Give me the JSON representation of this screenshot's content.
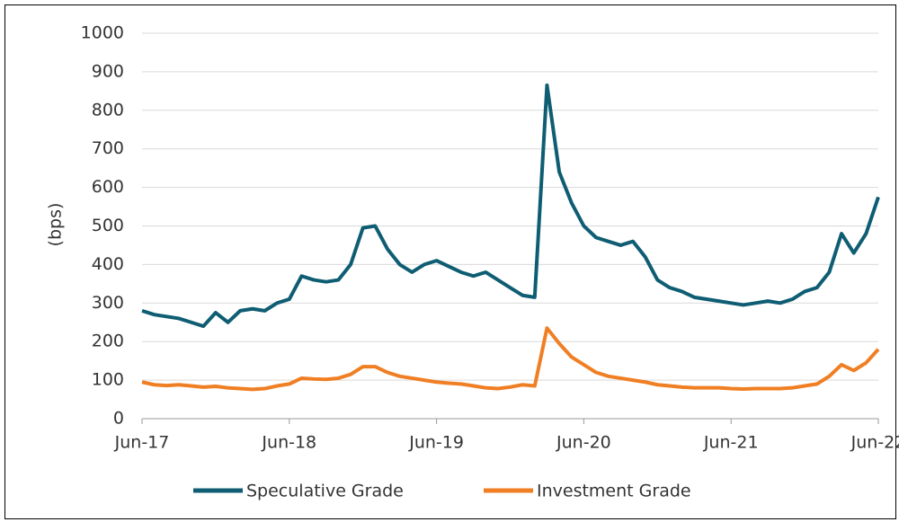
{
  "chart_data": {
    "type": "line",
    "y_label": "(bps)",
    "x": [
      "2017-06",
      "2017-07",
      "2017-08",
      "2017-09",
      "2017-10",
      "2017-11",
      "2017-12",
      "2018-01",
      "2018-02",
      "2018-03",
      "2018-04",
      "2018-05",
      "2018-06",
      "2018-07",
      "2018-08",
      "2018-09",
      "2018-10",
      "2018-11",
      "2018-12",
      "2019-01",
      "2019-02",
      "2019-03",
      "2019-04",
      "2019-05",
      "2019-06",
      "2019-07",
      "2019-08",
      "2019-09",
      "2019-10",
      "2019-11",
      "2019-12",
      "2020-01",
      "2020-02",
      "2020-03",
      "2020-04",
      "2020-05",
      "2020-06",
      "2020-07",
      "2020-08",
      "2020-09",
      "2020-10",
      "2020-11",
      "2020-12",
      "2021-01",
      "2021-02",
      "2021-03",
      "2021-04",
      "2021-05",
      "2021-06",
      "2021-07",
      "2021-08",
      "2021-09",
      "2021-10",
      "2021-11",
      "2021-12",
      "2022-01",
      "2022-02",
      "2022-03",
      "2022-04",
      "2022-05",
      "2022-06"
    ],
    "series": [
      {
        "name": "Speculative Grade",
        "color": "#0e5d73",
        "values": [
          280,
          270,
          265,
          260,
          250,
          240,
          275,
          250,
          280,
          285,
          280,
          300,
          310,
          370,
          360,
          355,
          360,
          400,
          495,
          500,
          440,
          400,
          380,
          400,
          410,
          395,
          380,
          370,
          380,
          360,
          340,
          320,
          315,
          865,
          640,
          560,
          500,
          470,
          460,
          450,
          460,
          420,
          360,
          340,
          330,
          315,
          310,
          305,
          300,
          295,
          300,
          305,
          300,
          310,
          330,
          340,
          380,
          480,
          430,
          480,
          575
        ]
      },
      {
        "name": "Investment Grade",
        "color": "#f07f24",
        "values": [
          95,
          88,
          86,
          88,
          85,
          82,
          84,
          80,
          78,
          76,
          78,
          85,
          90,
          105,
          103,
          102,
          105,
          115,
          135,
          135,
          120,
          110,
          105,
          100,
          95,
          92,
          90,
          85,
          80,
          78,
          82,
          88,
          85,
          235,
          195,
          160,
          140,
          120,
          110,
          105,
          100,
          95,
          88,
          85,
          82,
          80,
          80,
          80,
          78,
          77,
          78,
          78,
          78,
          80,
          85,
          90,
          110,
          140,
          125,
          145,
          180
        ]
      }
    ],
    "xlim": [
      "2017-06",
      "2022-06"
    ],
    "xticks": [
      {
        "value": "2017-06",
        "label": "Jun-17"
      },
      {
        "value": "2018-06",
        "label": "Jun-18"
      },
      {
        "value": "2019-06",
        "label": "Jun-19"
      },
      {
        "value": "2020-06",
        "label": "Jun-20"
      },
      {
        "value": "2021-06",
        "label": "Jun-21"
      },
      {
        "value": "2022-06",
        "label": "Jun-22"
      }
    ],
    "ylim": [
      0,
      1000
    ],
    "yticks": [
      0,
      100,
      200,
      300,
      400,
      500,
      600,
      700,
      800,
      900,
      1000
    ],
    "grid": true,
    "legend": "bottom"
  }
}
